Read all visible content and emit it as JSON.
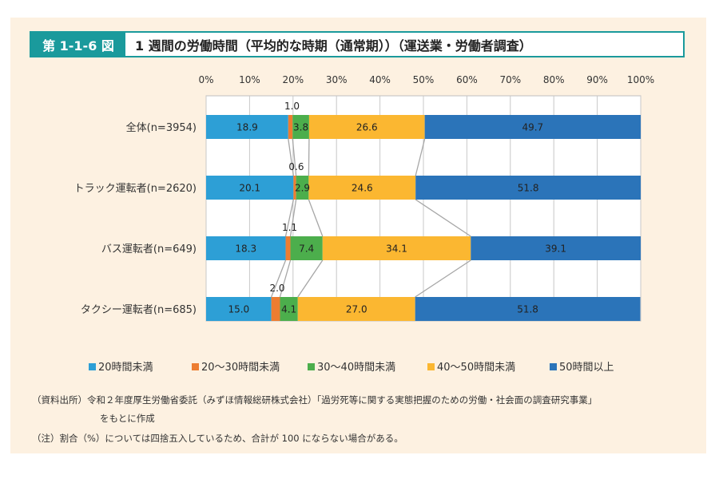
{
  "header": {
    "badge": "第 1-1-6 図",
    "title": "1 週間の労働時間（平均的な時期（通常期））（運送業・労働者調査）"
  },
  "chart_data": {
    "type": "bar",
    "orientation": "horizontal",
    "stacked": true,
    "xlim": [
      0,
      100
    ],
    "x_tick_labels": [
      "0%",
      "10%",
      "20%",
      "30%",
      "40%",
      "50%",
      "60%",
      "70%",
      "80%",
      "90%",
      "100%"
    ],
    "grid": true,
    "legend_position": "bottom",
    "categories": [
      "全体(n=3954)",
      "トラック運転者(n=2620)",
      "バス運転者(n=649)",
      "タクシー運転者(n=685)"
    ],
    "series": [
      {
        "name": "20時間未満",
        "color": "#2d9fd6",
        "values": [
          18.9,
          20.1,
          18.3,
          15.0
        ],
        "labels": [
          "18.9",
          "20.1",
          "18.3",
          "15.0"
        ]
      },
      {
        "name": "20〜30時間未満",
        "color": "#ed7d31",
        "values": [
          1.0,
          0.6,
          1.1,
          2.0
        ],
        "labels": [
          "1.0",
          "0.6",
          "1.1",
          "2.0"
        ]
      },
      {
        "name": "30〜40時間未満",
        "color": "#4cae4c",
        "values": [
          3.8,
          2.9,
          7.4,
          4.1
        ],
        "labels": [
          "3.8",
          "2.9",
          "7.4",
          "4.1"
        ]
      },
      {
        "name": "40〜50時間未満",
        "color": "#fbb731",
        "values": [
          26.6,
          24.6,
          34.1,
          27.0
        ],
        "labels": [
          "26.6",
          "24.6",
          "34.1",
          "27.0"
        ]
      },
      {
        "name": "50時間以上",
        "color": "#2b74b9",
        "values": [
          49.7,
          51.8,
          39.1,
          51.8
        ],
        "labels": [
          "49.7",
          "51.8",
          "39.1",
          "51.8"
        ]
      }
    ]
  },
  "footer": {
    "source_line1": "（資料出所）令和２年度厚生労働省委託（みずほ情報総研株式会社）「過労死等に関する実態把握のための労働・社会面の調査研究事業」",
    "source_line2": "をもとに作成",
    "note": "（注）割合（%）については四捨五入しているため、合計が 100 にならない場合がある。"
  }
}
